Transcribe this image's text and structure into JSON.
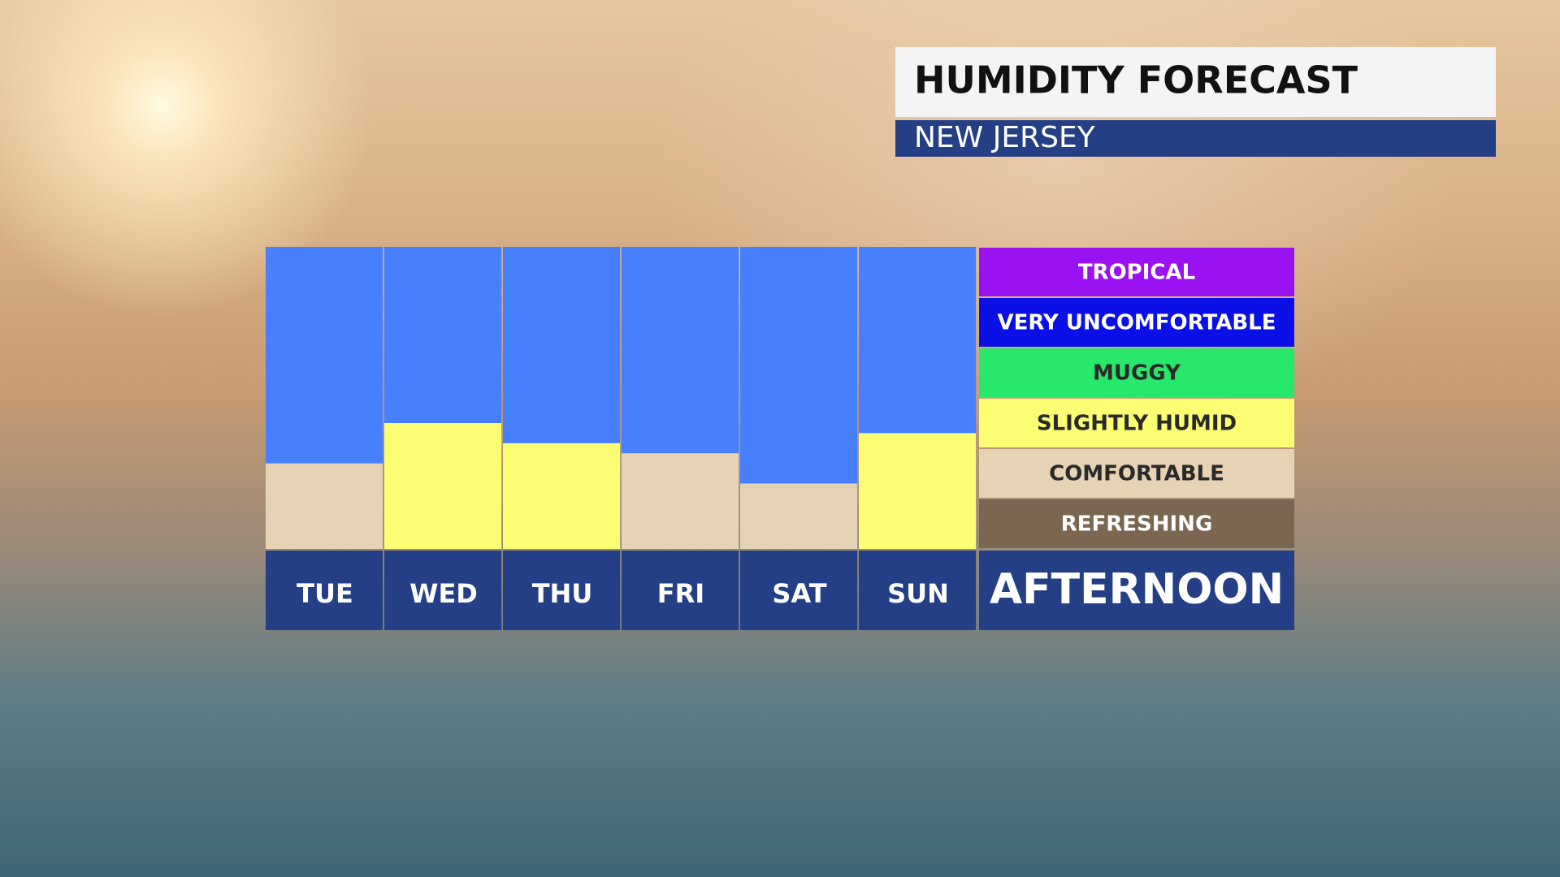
{
  "chart_data": {
    "type": "bar",
    "title": "HUMIDITY FORECAST",
    "subtitle": "NEW JERSEY",
    "period_label": "AFTERNOON",
    "categories": [
      "TUE",
      "WED",
      "THU",
      "FRI",
      "SAT",
      "SUN"
    ],
    "values": [
      1.7,
      2.5,
      2.1,
      1.9,
      1.3,
      2.3
    ],
    "ylim": [
      0,
      6
    ],
    "column_color": "#4680ff",
    "levels": [
      {
        "name": "REFRESHING",
        "color": "#7b6652",
        "text_color": "#ffffff"
      },
      {
        "name": "COMFORTABLE",
        "color": "#e6d2b4",
        "text_color": "#2a2a2a"
      },
      {
        "name": "SLIGHTLY HUMID",
        "color": "#fbfd72",
        "text_color": "#2a2a2a"
      },
      {
        "name": "MUGGY",
        "color": "#27e86a",
        "text_color": "#2a2a2a"
      },
      {
        "name": "VERY UNCOMFORTABLE",
        "color": "#0a10e6",
        "text_color": "#ffffff"
      },
      {
        "name": "TROPICAL",
        "color": "#9a12f2",
        "text_color": "#ffffff"
      }
    ]
  }
}
